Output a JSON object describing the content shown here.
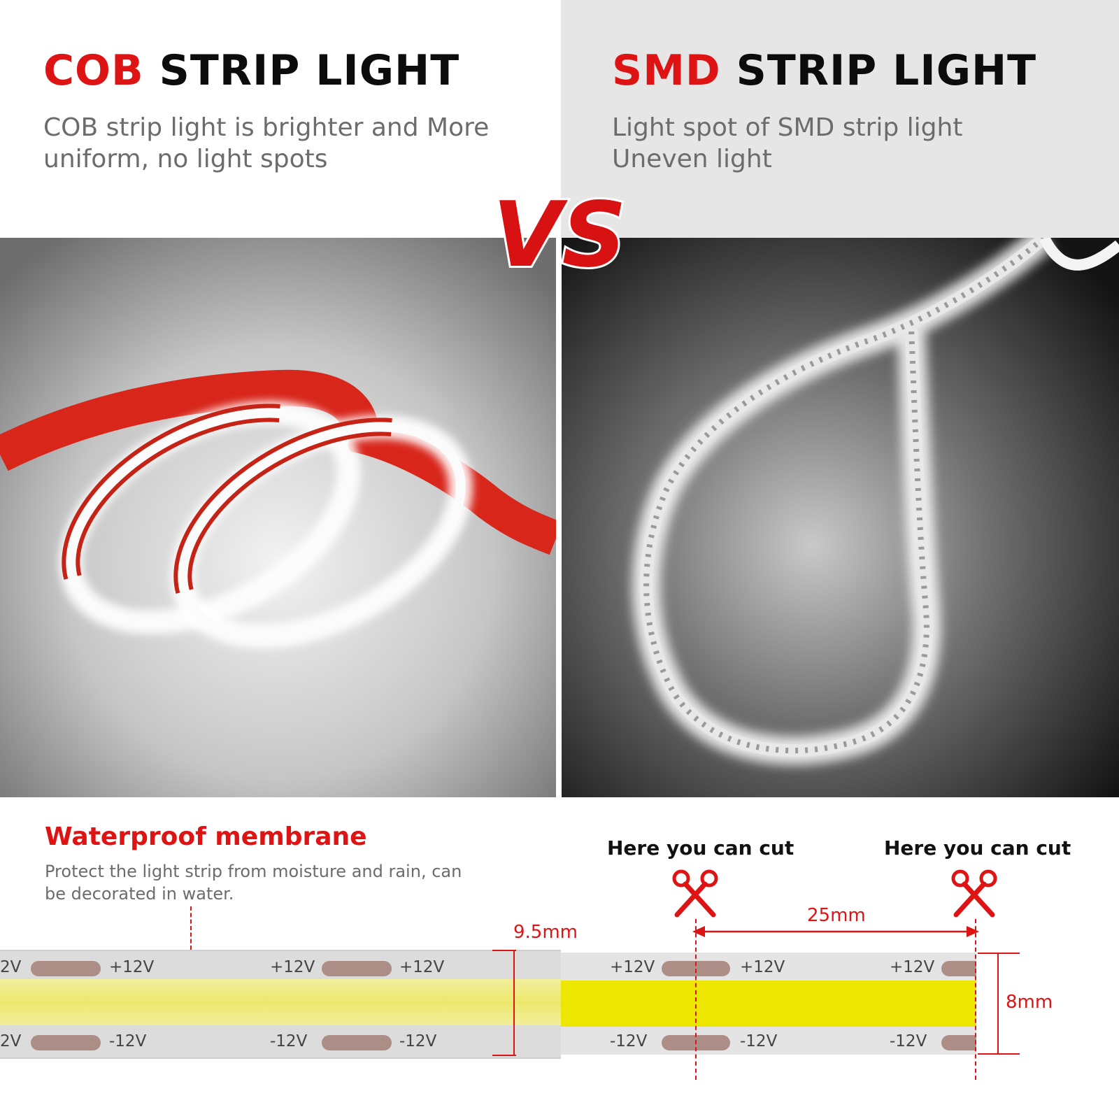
{
  "left": {
    "title_red": "COB",
    "title_black": "STRIP LIGHT",
    "subtitle_line1": "COB strip light is brighter and More",
    "subtitle_line2": "uniform, no light spots"
  },
  "right": {
    "title_red": "SMD",
    "title_black": "STRIP LIGHT",
    "subtitle_line1": "Light spot of SMD strip light",
    "subtitle_line2": "Uneven light"
  },
  "vs_text": "VS",
  "diagram": {
    "membrane_title": "Waterproof membrane",
    "membrane_desc_line1": "Protect the light strip from moisture and rain, can",
    "membrane_desc_line2": "be decorated in water.",
    "cut_label_1": "Here you can cut",
    "cut_label_2": "Here you can cut",
    "width_cob": "9.5mm",
    "segment_length": "25mm",
    "width_smd": "8mm",
    "plus_label": "+12V",
    "plus_label_partial": "2V",
    "minus_label": "-12V",
    "minus_label_partial": "2V"
  },
  "colors": {
    "accent_red": "#de1414",
    "panel_grey": "#e6e6e6",
    "led_yellow": "#ece600"
  },
  "icons": [
    "scissors-icon",
    "scissors-icon"
  ]
}
